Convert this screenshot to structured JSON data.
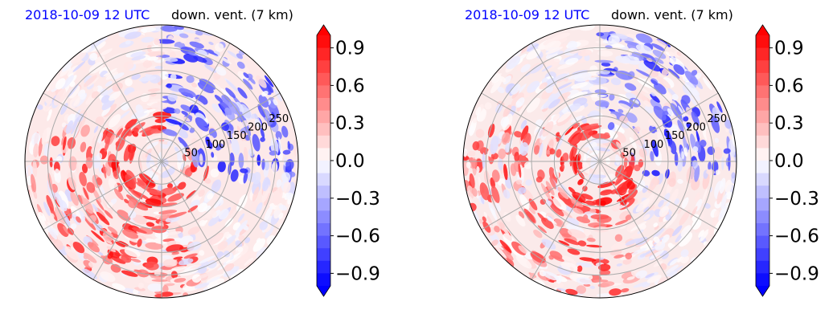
{
  "chart_data": [
    {
      "type": "heatmap",
      "projection": "polar",
      "title_left": "2018-10-09 12 UTC",
      "title_right": "down. vent. (7 km)",
      "title_left_color": "#0000ff",
      "radial_ticks": [
        "50",
        "100",
        "150",
        "200",
        "250"
      ],
      "radial_max": 300,
      "grid": true,
      "colorbar": {
        "cmap": "bwr",
        "vmin": -1.0,
        "vmax": 1.0,
        "ticks": [
          "0.9",
          "0.6",
          "0.3",
          "0.0",
          "−0.3",
          "−0.6",
          "−0.9"
        ],
        "extend": "both"
      }
    },
    {
      "type": "heatmap",
      "projection": "polar",
      "title_left": "2018-10-09 12 UTC",
      "title_right": "down. vent. (7 km)",
      "title_left_color": "#0000ff",
      "radial_ticks": [
        "50",
        "100",
        "150",
        "200",
        "250"
      ],
      "radial_max": 300,
      "grid": true,
      "colorbar": {
        "cmap": "bwr",
        "vmin": -1.0,
        "vmax": 1.0,
        "ticks": [
          "0.9",
          "0.6",
          "0.3",
          "0.0",
          "−0.3",
          "−0.6",
          "−0.9"
        ],
        "extend": "both"
      }
    }
  ]
}
